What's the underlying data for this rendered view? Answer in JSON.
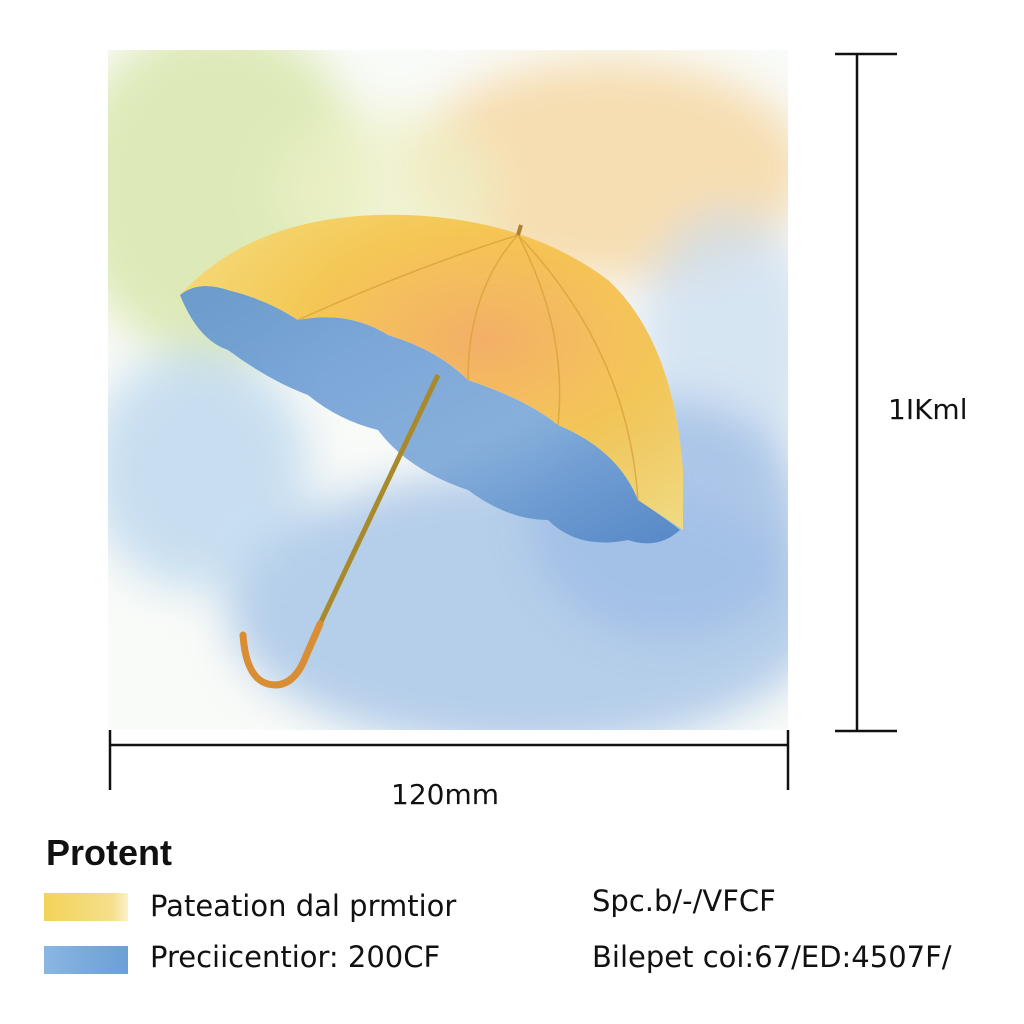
{
  "dimensions": {
    "width_label": "120mm",
    "height_label": "1IKml"
  },
  "legend": {
    "title": "Protent",
    "items": [
      {
        "label": "Pateation dal prmtior",
        "color": "#f3d35a",
        "detail": "Spc.b/-/VFCF"
      },
      {
        "label": "Preciicentior: 200CF",
        "color": "#6b9fd6",
        "detail": "Bilepet coi:67/ED:4507F/"
      }
    ]
  },
  "colors": {
    "umbrella_top": "#f5c34a",
    "umbrella_underside": "#6f9fd2",
    "handle": "#c98a2e",
    "sky_blue": "#a9c6e8",
    "sky_green": "#d6e6a8",
    "cloud_peach": "#f6d8a6"
  }
}
